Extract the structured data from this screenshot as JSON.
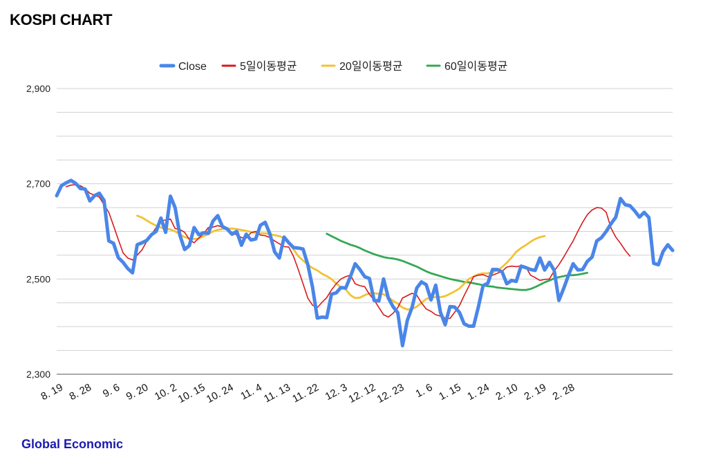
{
  "header": {
    "title": "KOSPI CHART"
  },
  "footer": {
    "source": "Global Economic"
  },
  "colors": {
    "close": "#4a86e8",
    "ma5": "#d7191c",
    "ma20": "#f1c232",
    "ma60": "#34a853",
    "grid": "#d0d0d0"
  },
  "chart_data": {
    "type": "line",
    "title": "",
    "xlabel": "",
    "ylabel": "",
    "ylim": [
      2300,
      2900
    ],
    "yticks": [
      2300,
      2500,
      2700,
      2900
    ],
    "ytick_labels": [
      "2,300",
      "2,500",
      "2,700",
      "2,900"
    ],
    "grid": true,
    "legend_position": "top",
    "x_tick_labels": [
      {
        "i": 0,
        "label": "8. 19"
      },
      {
        "i": 6,
        "label": "8. 28"
      },
      {
        "i": 12,
        "label": "9. 6"
      },
      {
        "i": 18,
        "label": "9. 20"
      },
      {
        "i": 24,
        "label": "10. 2"
      },
      {
        "i": 30,
        "label": "10. 15"
      },
      {
        "i": 36,
        "label": "10. 24"
      },
      {
        "i": 42,
        "label": "11. 4"
      },
      {
        "i": 48,
        "label": "11. 13"
      },
      {
        "i": 54,
        "label": "11. 22"
      },
      {
        "i": 60,
        "label": "12. 3"
      },
      {
        "i": 66,
        "label": "12. 12"
      },
      {
        "i": 72,
        "label": "12. 23"
      },
      {
        "i": 78,
        "label": "1. 6"
      },
      {
        "i": 84,
        "label": "1. 15"
      },
      {
        "i": 90,
        "label": "1. 24"
      },
      {
        "i": 96,
        "label": "2. 10"
      },
      {
        "i": 102,
        "label": "2. 19"
      },
      {
        "i": 108,
        "label": "2. 28"
      }
    ],
    "series": [
      {
        "name": "Close",
        "color": "#4a86e8",
        "start": 0,
        "values": [
          2675,
          2696,
          2702,
          2707,
          2701,
          2690,
          2689,
          2664,
          2675,
          2680,
          2665,
          2580,
          2575,
          2545,
          2535,
          2522,
          2513,
          2572,
          2576,
          2581,
          2593,
          2600,
          2628,
          2598,
          2674,
          2650,
          2592,
          2562,
          2570,
          2608,
          2593,
          2597,
          2596,
          2622,
          2633,
          2610,
          2605,
          2594,
          2600,
          2571,
          2594,
          2582,
          2584,
          2613,
          2619,
          2595,
          2557,
          2544,
          2588,
          2576,
          2566,
          2565,
          2563,
          2530,
          2483,
          2418,
          2420,
          2419,
          2468,
          2471,
          2482,
          2481,
          2505,
          2532,
          2520,
          2505,
          2501,
          2455,
          2454,
          2500,
          2460,
          2442,
          2429,
          2360,
          2413,
          2440,
          2481,
          2494,
          2488,
          2456,
          2487,
          2430,
          2404,
          2442,
          2441,
          2430,
          2406,
          2401,
          2401,
          2441,
          2486,
          2491,
          2520,
          2520,
          2515,
          2490,
          2497,
          2495,
          2527,
          2524,
          2520,
          2518,
          2544,
          2519,
          2535,
          2518,
          2455,
          2480,
          2507,
          2532,
          2519,
          2520,
          2537,
          2546,
          2580,
          2587,
          2600,
          2616,
          2630,
          2669,
          2656,
          2654,
          2643,
          2630,
          2640,
          2629,
          2533,
          2530,
          2558,
          2572,
          2560
        ]
      },
      {
        "name": "5일이동평균",
        "color": "#d7191c",
        "start": 2,
        "values": [
          2694,
          2697,
          2698,
          2696,
          2690,
          2680,
          2676,
          2672,
          2656,
          2640,
          2612,
          2583,
          2555,
          2544,
          2540,
          2550,
          2561,
          2579,
          2593,
          2608,
          2622,
          2624,
          2626,
          2606,
          2604,
          2598,
          2583,
          2576,
          2586,
          2595,
          2608,
          2609,
          2612,
          2609,
          2608,
          2596,
          2593,
          2587,
          2586,
          2597,
          2600,
          2592,
          2591,
          2587,
          2580,
          2574,
          2568,
          2567,
          2547,
          2520,
          2490,
          2460,
          2445,
          2440,
          2451,
          2461,
          2477,
          2490,
          2500,
          2505,
          2508,
          2490,
          2486,
          2484,
          2468,
          2456,
          2440,
          2425,
          2420,
          2428,
          2440,
          2460,
          2465,
          2470,
          2466,
          2450,
          2437,
          2432,
          2425,
          2422,
          2418,
          2417,
          2430,
          2444,
          2465,
          2485,
          2505,
          2508,
          2509,
          2505,
          2508,
          2512,
          2516,
          2525,
          2527,
          2526,
          2527,
          2526,
          2508,
          2503,
          2497,
          2499,
          2500,
          2517,
          2530,
          2546,
          2563,
          2580,
          2600,
          2619,
          2635,
          2645,
          2650,
          2649,
          2640,
          2607,
          2588,
          2575,
          2560,
          2548
        ]
      },
      {
        "name": "20일이동평균",
        "color": "#f1c232",
        "start": 17,
        "values": [
          2633,
          2629,
          2623,
          2617,
          2612,
          2608,
          2606,
          2604,
          2600,
          2594,
          2588,
          2585,
          2584,
          2585,
          2590,
          2594,
          2600,
          2603,
          2605,
          2606,
          2606,
          2605,
          2603,
          2601,
          2599,
          2597,
          2596,
          2596,
          2594,
          2592,
          2590,
          2586,
          2575,
          2562,
          2548,
          2539,
          2530,
          2523,
          2518,
          2511,
          2506,
          2500,
          2490,
          2483,
          2478,
          2466,
          2460,
          2461,
          2466,
          2470,
          2470,
          2469,
          2468,
          2462,
          2454,
          2448,
          2440,
          2436,
          2437,
          2442,
          2450,
          2458,
          2461,
          2462,
          2462,
          2464,
          2469,
          2474,
          2480,
          2490,
          2500,
          2505,
          2510,
          2512,
          2512,
          2514,
          2518,
          2525,
          2534,
          2545,
          2557,
          2565,
          2571,
          2578,
          2584,
          2588,
          2590
        ]
      },
      {
        "name": "60일이동평균",
        "color": "#34a853",
        "start": 57,
        "values": [
          2595,
          2590,
          2585,
          2580,
          2576,
          2572,
          2569,
          2565,
          2560,
          2556,
          2552,
          2549,
          2546,
          2544,
          2543,
          2541,
          2538,
          2534,
          2530,
          2526,
          2521,
          2516,
          2512,
          2509,
          2506,
          2503,
          2500,
          2498,
          2496,
          2494,
          2493,
          2491,
          2489,
          2487,
          2485,
          2484,
          2482,
          2481,
          2480,
          2479,
          2478,
          2477,
          2477,
          2479,
          2483,
          2488,
          2493,
          2497,
          2501,
          2504,
          2506,
          2508,
          2508,
          2509,
          2511,
          2513
        ]
      }
    ]
  }
}
